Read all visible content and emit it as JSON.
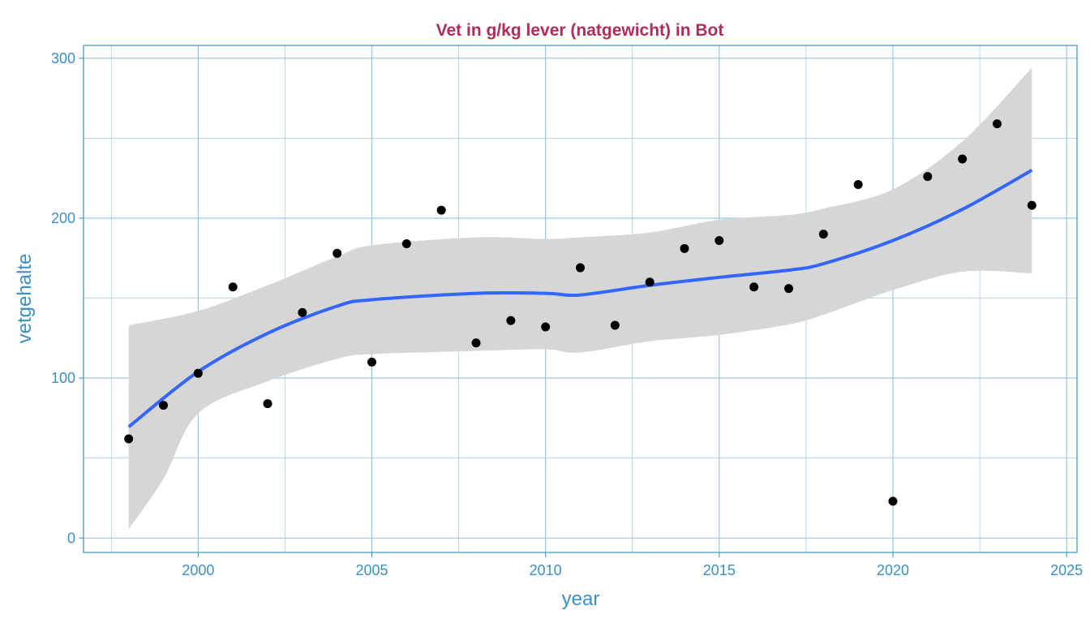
{
  "chart_data": {
    "type": "scatter",
    "title": "Vet in g/kg lever (natgewicht) in Bot",
    "xlabel": "year",
    "ylabel": "vetgehalte",
    "xlim": [
      1996.7,
      2025.3
    ],
    "ylim": [
      -9,
      308
    ],
    "x_ticks": [
      2000,
      2005,
      2010,
      2015,
      2020,
      2025
    ],
    "y_ticks": [
      0,
      100,
      200,
      300
    ],
    "grid": true,
    "colors": {
      "points": "#000000",
      "smooth": "#3366ff",
      "ribbon": "#d6d6d6",
      "axis": "#3a8fc7",
      "title": "#b02d5b",
      "grid": "#8fc1e3"
    },
    "points": {
      "x": [
        1998,
        1999,
        2000,
        2001,
        2002,
        2003,
        2004,
        2005,
        2006,
        2007,
        2008,
        2009,
        2010,
        2011,
        2012,
        2013,
        2014,
        2015,
        2016,
        2017,
        2018,
        2019,
        2020,
        2021,
        2022,
        2023,
        2024
      ],
      "y": [
        62,
        83,
        103,
        157,
        84,
        141,
        178,
        110,
        184,
        205,
        122,
        136,
        132,
        169,
        133,
        160,
        181,
        186,
        157,
        156,
        190,
        221,
        23,
        226,
        237,
        259,
        208
      ]
    },
    "smooth": {
      "x": [
        1998,
        2000,
        2002,
        2004,
        2005,
        2008,
        2010,
        2011,
        2013,
        2015,
        2017,
        2018,
        2020,
        2022,
        2024
      ],
      "y": [
        69.5,
        104,
        128,
        145,
        149,
        153,
        153,
        152,
        158,
        163,
        167.5,
        171.5,
        186,
        205.5,
        230
      ],
      "upper": [
        133,
        142,
        158,
        176,
        183,
        188,
        187,
        188,
        191,
        199,
        202,
        206,
        218,
        248,
        294
      ],
      "lower": [
        5.6,
        78,
        98,
        112,
        115,
        117,
        118,
        116,
        123,
        127,
        133.5,
        139.6,
        155,
        166.5,
        165.5
      ]
    },
    "lower_extra": {
      "x": 1999,
      "y": 37
    }
  }
}
